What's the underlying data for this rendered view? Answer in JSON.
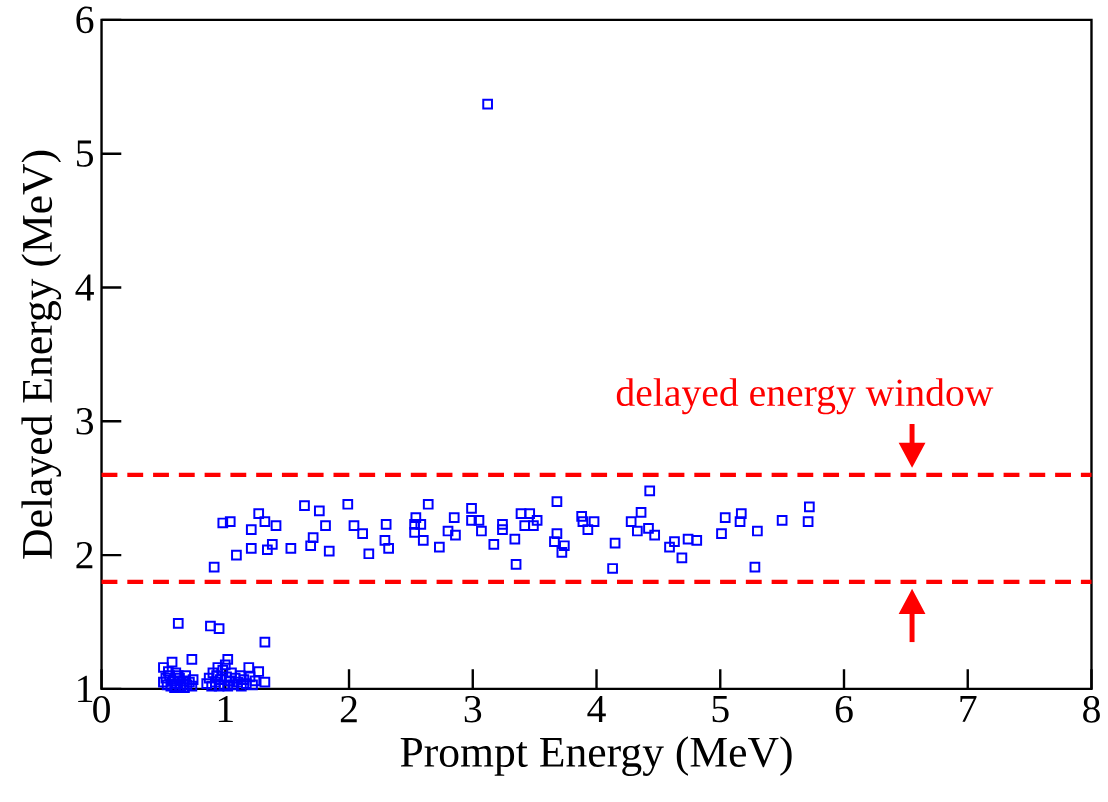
{
  "chart_data": {
    "type": "scatter",
    "xlabel": "Prompt Energy (MeV)",
    "ylabel": "Delayed Energy (MeV)",
    "annotations": [
      "delayed energy window"
    ],
    "xlim": [
      0,
      8
    ],
    "ylim": [
      1,
      6
    ],
    "xticks": [
      0,
      1,
      2,
      3,
      4,
      5,
      6,
      7,
      8
    ],
    "yticks": [
      1,
      2,
      3,
      4,
      5,
      6
    ],
    "marker": "square",
    "ref_lines": [
      {
        "axis": "y",
        "value": 2.6,
        "color": "#ff0000",
        "line_style": "dashed"
      },
      {
        "axis": "y",
        "value": 1.8,
        "color": "#ff0000",
        "line_style": "dashed"
      }
    ],
    "series": [
      {
        "color": "#0000ff",
        "x": [
          0.91,
          0.98,
          1.04,
          1.09,
          1.21,
          1.21,
          1.27,
          1.32,
          1.34,
          1.38,
          1.41,
          1.53,
          1.64,
          1.69,
          1.71,
          1.76,
          1.81,
          1.84,
          1.99,
          2.04,
          2.11,
          2.16,
          2.3,
          2.29,
          2.32,
          2.54,
          2.53,
          2.58,
          2.53,
          2.6,
          2.64,
          2.73,
          2.8,
          2.85,
          2.86,
          2.99,
          2.99,
          3.05,
          3.07,
          3.17,
          3.24,
          3.24,
          3.34,
          3.35,
          3.39,
          3.46,
          3.42,
          3.49,
          3.52,
          3.68,
          3.68,
          3.66,
          3.74,
          3.72,
          3.88,
          3.89,
          3.93,
          3.98,
          4.43,
          4.36,
          4.28,
          4.33,
          4.42,
          4.47,
          4.15,
          4.13,
          4.59,
          4.63,
          4.74,
          4.81,
          4.69,
          5.04,
          5.01,
          5.17,
          5.16,
          5.3,
          5.5,
          5.72,
          5.71,
          5.28,
          3.12,
          0.62,
          0.88,
          0.95,
          1.32,
          0.73,
          1.02,
          0.57,
          0.5,
          1.19,
          1.27,
          1.32,
          0.5,
          0.52,
          0.53,
          0.55,
          0.56,
          0.58,
          0.6,
          0.61,
          0.63,
          0.64,
          0.66,
          0.68,
          0.69,
          0.71,
          0.73,
          0.74,
          0.54,
          0.59,
          0.67,
          0.62,
          0.85,
          0.87,
          0.89,
          0.9,
          0.92,
          0.93,
          0.95,
          0.96,
          0.98,
          0.99,
          1.01,
          1.02,
          1.04,
          1.05,
          1.07,
          1.08,
          1.1,
          1.12,
          1.13,
          1.15,
          1.17,
          1.2,
          1.22,
          1.24,
          0.94,
          1.0
        ],
        "values": [
          1.91,
          2.24,
          2.25,
          2.0,
          2.05,
          2.19,
          2.31,
          2.25,
          2.04,
          2.08,
          2.22,
          2.05,
          2.37,
          2.07,
          2.13,
          2.33,
          2.22,
          2.03,
          2.38,
          2.22,
          2.16,
          2.01,
          2.23,
          2.11,
          2.05,
          2.28,
          2.23,
          2.23,
          2.17,
          2.11,
          2.38,
          2.06,
          2.18,
          2.28,
          2.15,
          2.35,
          2.26,
          2.26,
          2.18,
          2.08,
          2.23,
          2.19,
          2.12,
          1.93,
          2.31,
          2.31,
          2.22,
          2.22,
          2.26,
          2.4,
          2.16,
          2.1,
          2.07,
          2.02,
          2.29,
          2.25,
          2.19,
          2.25,
          2.48,
          2.32,
          2.25,
          2.18,
          2.2,
          2.15,
          2.09,
          1.9,
          2.06,
          2.1,
          2.12,
          2.11,
          1.98,
          2.28,
          2.16,
          2.31,
          2.25,
          2.18,
          2.26,
          2.36,
          2.25,
          1.91,
          5.37,
          1.49,
          1.47,
          1.45,
          1.35,
          1.22,
          1.22,
          1.2,
          1.16,
          1.16,
          1.13,
          1.05,
          1.05,
          1.08,
          1.03,
          1.1,
          1.02,
          1.06,
          1.12,
          1.04,
          1.08,
          1.02,
          1.06,
          1.1,
          1.03,
          1.05,
          1.02,
          1.07,
          1.13,
          1.01,
          1.01,
          1.1,
          1.04,
          1.08,
          1.02,
          1.12,
          1.05,
          1.1,
          1.02,
          1.07,
          1.14,
          1.03,
          1.09,
          1.02,
          1.06,
          1.12,
          1.03,
          1.08,
          1.05,
          1.1,
          1.02,
          1.07,
          1.04,
          1.09,
          1.03,
          1.06,
          1.16,
          1.18
        ]
      }
    ]
  }
}
